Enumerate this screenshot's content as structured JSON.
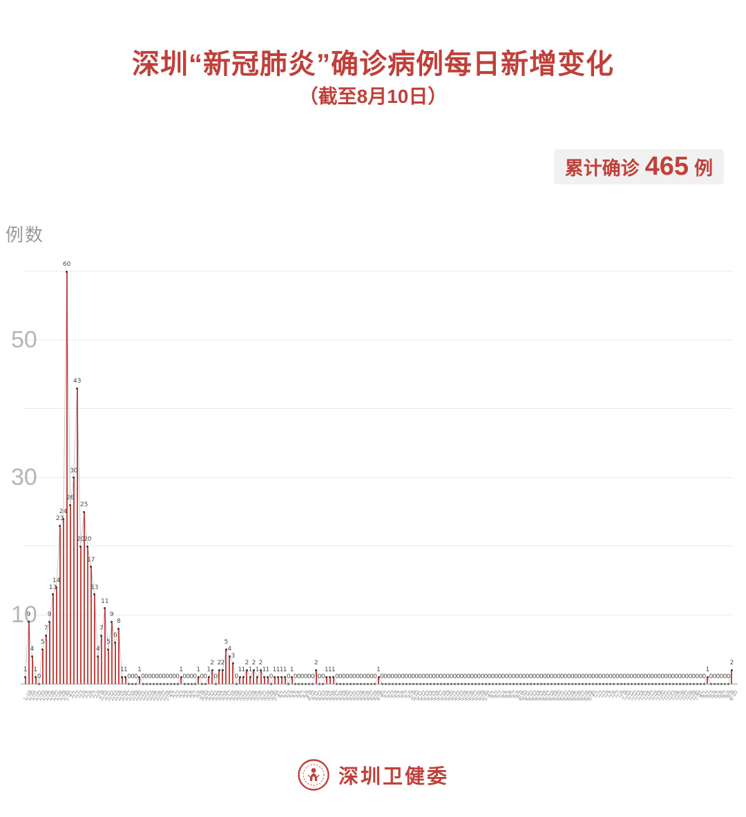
{
  "header": {
    "title": "深圳“新冠肺炎”确诊病例每日新增变化",
    "subtitle": "（截至8月10日）"
  },
  "badge": {
    "label": "累计确诊",
    "value": "465",
    "unit": "例"
  },
  "footer": {
    "org_name": "深圳卫健委"
  },
  "colors": {
    "accent_red": "#bf403a",
    "bar_red": "#c4453f",
    "badge_bg": "#f1f1f1",
    "axis_gray": "#9a9a9a",
    "tick_gray": "#b5b5b5",
    "line_gray": "#c8c8c8"
  },
  "chart_data": {
    "type": "bar",
    "title": "深圳“新冠肺炎”确诊病例每日新增变化",
    "subtitle": "（截至8月10日）",
    "ylabel": "例数",
    "xlabel": "",
    "ylim": [
      0,
      60
    ],
    "y_gridlines": [
      10,
      20,
      30,
      40,
      50,
      60
    ],
    "y_tick_labels": [
      10,
      30,
      50
    ],
    "grid": "horizontal",
    "legend": "none",
    "annotation": "每根红色细柱标注当日新增数值，灰色细线连接各数据点",
    "x": [
      "1-19",
      "1-20",
      "1-21",
      "1-22",
      "1-23",
      "1-24",
      "1-25",
      "1-26",
      "1-27",
      "1-28",
      "1-29",
      "1-30",
      "1-31",
      "2-1",
      "2-2",
      "2-3",
      "2-4",
      "2-5",
      "2-6",
      "2-7",
      "2-8",
      "2-9",
      "2-10",
      "2-11",
      "2-12",
      "2-13",
      "2-14",
      "2-15",
      "2-16",
      "2-17",
      "2-18",
      "2-19",
      "2-20",
      "2-21",
      "2-22",
      "2-23",
      "2-24",
      "2-25",
      "2-26",
      "2-27",
      "2-28",
      "2-29",
      "3-1",
      "3-2",
      "3-3",
      "3-4",
      "3-5",
      "3-6",
      "3-7",
      "3-8",
      "3-9",
      "3-10",
      "3-11",
      "3-12",
      "3-13",
      "3-14",
      "3-15",
      "3-16",
      "3-17",
      "3-18",
      "3-19",
      "3-20",
      "3-21",
      "3-22",
      "3-23",
      "3-24",
      "3-25",
      "3-26",
      "3-27",
      "3-28",
      "3-29",
      "3-30",
      "3-31",
      "4-1",
      "4-2",
      "4-3",
      "4-4",
      "4-5",
      "4-6",
      "4-7",
      "4-8",
      "4-9",
      "4-10",
      "4-11",
      "4-12",
      "4-13",
      "4-14",
      "4-15",
      "4-16",
      "4-17",
      "4-18",
      "4-19",
      "4-20",
      "4-21",
      "4-22",
      "4-23",
      "4-24",
      "4-25",
      "4-26",
      "4-27",
      "4-28",
      "4-29",
      "4-30",
      "5-1",
      "5-2",
      "5-3",
      "5-4",
      "5-5",
      "5-6",
      "5-7",
      "5-8",
      "5-9",
      "5-10",
      "5-11",
      "5-12",
      "5-13",
      "5-14",
      "5-15",
      "5-16",
      "5-17",
      "5-18",
      "5-19",
      "5-20",
      "5-21",
      "5-22",
      "5-23",
      "5-24",
      "5-25",
      "5-26",
      "5-27",
      "5-28",
      "5-29",
      "5-30",
      "5-31",
      "6-1",
      "6-2",
      "6-3",
      "6-4",
      "6-5",
      "6-6",
      "6-7",
      "6-8",
      "6-9",
      "6-10",
      "6-11",
      "6-12",
      "6-13",
      "6-14",
      "6-15",
      "6-16",
      "6-17",
      "6-18",
      "6-19",
      "6-20",
      "6-21",
      "6-22",
      "6-23",
      "6-24",
      "6-25",
      "6-26",
      "6-27",
      "6-28",
      "6-29",
      "6-30",
      "7-1",
      "7-2",
      "7-3",
      "7-4",
      "7-5",
      "7-6",
      "7-7",
      "7-8",
      "7-9",
      "7-10",
      "7-11",
      "7-12",
      "7-13",
      "7-14",
      "7-15",
      "7-16",
      "7-17",
      "7-18",
      "7-19",
      "7-20",
      "7-21",
      "7-22",
      "7-23",
      "7-24",
      "7-25",
      "7-26",
      "7-27",
      "7-28",
      "7-29",
      "7-30",
      "7-31",
      "8-1",
      "8-2",
      "8-3",
      "8-4",
      "8-5",
      "8-6",
      "8-7",
      "8-8",
      "8-9",
      "8-10"
    ],
    "values": [
      1,
      9,
      4,
      1,
      0,
      5,
      7,
      9,
      13,
      14,
      23,
      24,
      60,
      26,
      30,
      43,
      20,
      25,
      20,
      17,
      13,
      4,
      7,
      11,
      5,
      9,
      6,
      8,
      1,
      1,
      0,
      0,
      0,
      1,
      0,
      0,
      0,
      0,
      0,
      0,
      0,
      0,
      0,
      0,
      0,
      1,
      0,
      0,
      0,
      0,
      1,
      0,
      0,
      1,
      2,
      0,
      2,
      2,
      5,
      4,
      3,
      0,
      1,
      1,
      2,
      1,
      2,
      1,
      2,
      1,
      1,
      0,
      1,
      1,
      1,
      1,
      0,
      1,
      0,
      0,
      0,
      0,
      0,
      0,
      2,
      0,
      0,
      1,
      1,
      1,
      0,
      0,
      0,
      0,
      0,
      0,
      0,
      0,
      0,
      0,
      0,
      0,
      1,
      0,
      0,
      0,
      0,
      0,
      0,
      0,
      0,
      0,
      0,
      0,
      0,
      0,
      0,
      0,
      0,
      0,
      0,
      0,
      0,
      0,
      0,
      0,
      0,
      0,
      0,
      0,
      0,
      0,
      0,
      0,
      0,
      0,
      0,
      0,
      0,
      0,
      0,
      0,
      0,
      0,
      0,
      0,
      0,
      0,
      0,
      0,
      0,
      0,
      0,
      0,
      0,
      0,
      0,
      0,
      0,
      0,
      0,
      0,
      0,
      0,
      0,
      0,
      0,
      0,
      0,
      0,
      0,
      0,
      0,
      0,
      0,
      0,
      0,
      0,
      0,
      0,
      0,
      0,
      0,
      0,
      0,
      0,
      0,
      0,
      0,
      0,
      0,
      0,
      0,
      0,
      0,
      0,
      0,
      1,
      0,
      0,
      0,
      0,
      0,
      0,
      2
    ]
  }
}
